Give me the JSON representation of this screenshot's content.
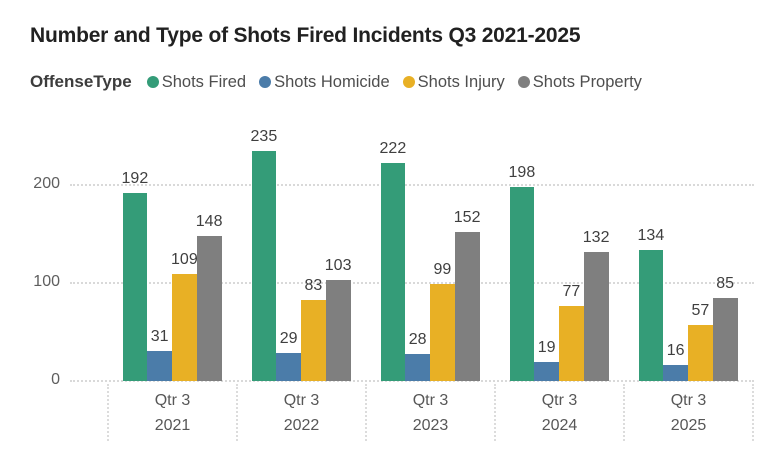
{
  "chart_data": {
    "type": "bar",
    "title": "Number and Type of Shots Fired Incidents Q3 2021-2025",
    "legend_title": "OffenseType",
    "legend_position": "top",
    "grid": "dotted horizontal gridlines, dotted category separators below axis",
    "category_prefix": "Qtr 3",
    "categories": [
      "2021",
      "2022",
      "2023",
      "2024",
      "2025"
    ],
    "series": [
      {
        "name": "Shots Fired",
        "color": "#349C78",
        "values": [
          192,
          235,
          222,
          198,
          134
        ]
      },
      {
        "name": "Shots Homicide",
        "color": "#4B7CA9",
        "values": [
          31,
          29,
          28,
          19,
          16
        ]
      },
      {
        "name": "Shots Injury",
        "color": "#E8B025",
        "values": [
          109,
          83,
          99,
          77,
          57
        ]
      },
      {
        "name": "Shots Property",
        "color": "#7F7F7F",
        "values": [
          148,
          103,
          152,
          132,
          85
        ]
      }
    ],
    "y_axis": {
      "ticks": [
        0,
        100,
        200
      ],
      "ylim": [
        0,
        250
      ],
      "label": ""
    },
    "colors": {
      "title": "#212121",
      "axis_label": "#5E5E5E",
      "data_label": "#3F3F3F",
      "legend_text": "#4E4E4E",
      "gridline": "#D9D9D9",
      "background": "#FFFFFF"
    }
  }
}
